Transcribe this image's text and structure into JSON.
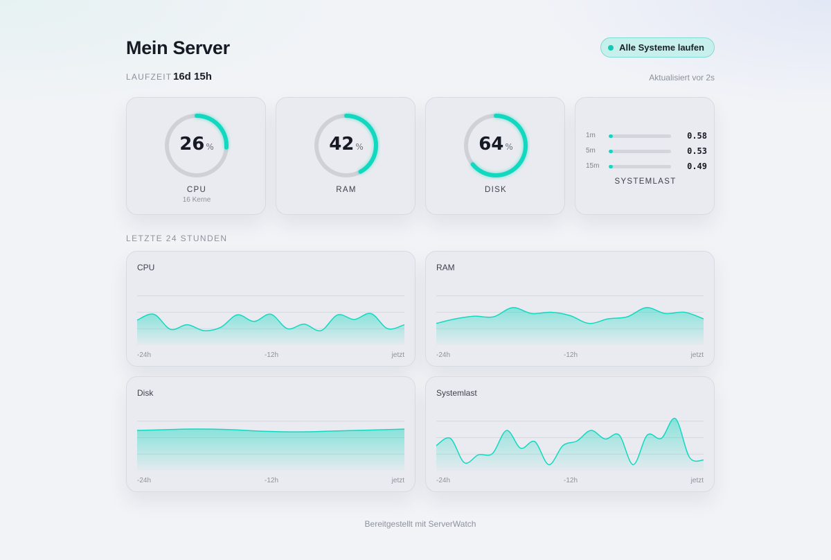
{
  "header": {
    "title": "Mein Server",
    "status_badge": "Alle Systeme laufen"
  },
  "uptime": {
    "label": "LAUFZEIT",
    "value": "16d 15h"
  },
  "updated": "Aktualisiert vor 2s",
  "gauges": [
    {
      "value": "26",
      "unit": "%",
      "percent": 26,
      "label": "CPU",
      "sub": "16 Kerne"
    },
    {
      "value": "42",
      "unit": "%",
      "percent": 42,
      "label": "RAM",
      "sub": ""
    },
    {
      "value": "64",
      "unit": "%",
      "percent": 64,
      "label": "DISK",
      "sub": ""
    }
  ],
  "load": {
    "title": "SYSTEMLAST",
    "rows": [
      {
        "label": "1m",
        "value": "0.58"
      },
      {
        "label": "5m",
        "value": "0.53"
      },
      {
        "label": "15m",
        "value": "0.49"
      }
    ]
  },
  "section_title": "LETZTE 24 STUNDEN",
  "colors": {
    "accent": "#12d8c0",
    "gauge_track": "#cfd1d7"
  },
  "chart_data": [
    {
      "type": "area",
      "title": "CPU",
      "x_ticks": [
        "-24h",
        "-12h",
        "jetzt"
      ],
      "values": [
        38,
        47,
        24,
        31,
        22,
        27,
        46,
        36,
        47,
        25,
        32,
        22,
        46,
        39,
        48,
        25,
        31
      ]
    },
    {
      "type": "area",
      "title": "RAM",
      "x_ticks": [
        "-24h",
        "-12h",
        "jetzt"
      ],
      "values": [
        33,
        40,
        44,
        43,
        57,
        48,
        50,
        45,
        33,
        40,
        43,
        57,
        48,
        50,
        40
      ]
    },
    {
      "type": "area",
      "title": "Disk",
      "x_ticks": [
        "-24h",
        "-12h",
        "jetzt"
      ],
      "values": [
        61,
        62,
        63,
        63,
        62,
        60,
        59,
        59,
        60,
        61,
        62,
        63
      ]
    },
    {
      "type": "area",
      "title": "Systemlast",
      "x_ticks": [
        "-24h",
        "-12h",
        "jetzt"
      ],
      "values": [
        38,
        49,
        12,
        24,
        26,
        61,
        34,
        44,
        9,
        38,
        45,
        61,
        48,
        54,
        9,
        54,
        49,
        79,
        20,
        16
      ]
    }
  ],
  "footer": "Bereitgestellt mit ServerWatch"
}
